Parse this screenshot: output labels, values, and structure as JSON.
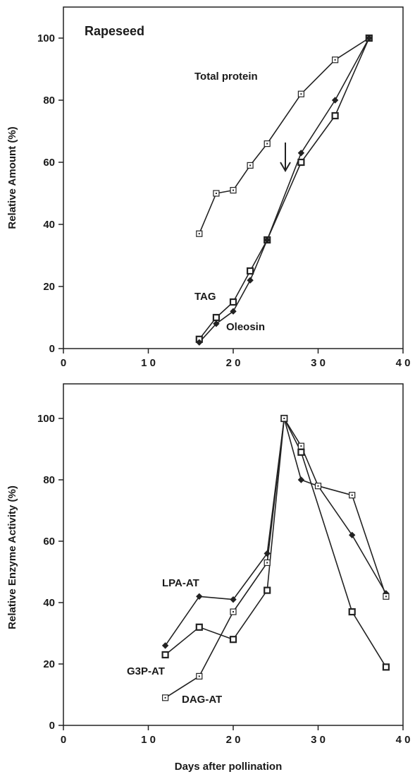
{
  "chart_data": [
    {
      "type": "line",
      "title": "Rapeseed",
      "xlabel": "",
      "ylabel": "Relative  Amount  (%)",
      "xlim": [
        0,
        40
      ],
      "ylim": [
        0,
        110
      ],
      "xticks": [
        0,
        10,
        20,
        30,
        40
      ],
      "xtick_labels": [
        "0",
        "1 0",
        "2 0",
        "3 0",
        "4 0"
      ],
      "yticks": [
        0,
        20,
        40,
        60,
        80,
        100
      ],
      "ytick_labels": [
        "0",
        "20",
        "40",
        "60",
        "80",
        "100"
      ],
      "grid": false,
      "series": [
        {
          "name": "Total protein",
          "marker": "open-square",
          "x": [
            16,
            18,
            20,
            22,
            24,
            28,
            32,
            36
          ],
          "y": [
            37,
            50,
            51,
            59,
            66,
            82,
            93,
            100
          ]
        },
        {
          "name": "TAG",
          "marker": "square",
          "x": [
            16,
            18,
            20,
            22,
            24,
            28,
            32,
            36
          ],
          "y": [
            3,
            10,
            15,
            25,
            35,
            60,
            75,
            100
          ]
        },
        {
          "name": "Oleosin",
          "marker": "diamond",
          "x": [
            16,
            18,
            20,
            22,
            24,
            28,
            32,
            36
          ],
          "y": [
            2,
            8,
            12,
            22,
            35,
            63,
            80,
            100
          ]
        }
      ],
      "annotations": [
        {
          "text": "Total protein",
          "series": "Total protein"
        },
        {
          "text": "TAG",
          "series": "TAG"
        },
        {
          "text": "Oleosin",
          "series": "Oleosin"
        },
        {
          "marker": "arrow-down",
          "x": 26.3,
          "y": 58
        }
      ]
    },
    {
      "type": "line",
      "title": "",
      "xlabel": "Days after pollination",
      "ylabel": "Relative  Enzyme  Activity  (%)",
      "xlim": [
        0,
        40
      ],
      "ylim": [
        0,
        110
      ],
      "xticks": [
        0,
        10,
        20,
        30,
        40
      ],
      "xtick_labels": [
        "0",
        "1 0",
        "2 0",
        "3 0",
        "4 0"
      ],
      "yticks": [
        0,
        20,
        40,
        60,
        80,
        100
      ],
      "ytick_labels": [
        "0",
        "20",
        "40",
        "60",
        "80",
        "100"
      ],
      "grid": false,
      "series": [
        {
          "name": "LPA-AT",
          "marker": "diamond",
          "x": [
            12,
            16,
            20,
            24,
            26,
            28,
            30,
            34,
            38
          ],
          "y": [
            26,
            42,
            41,
            56,
            100,
            80,
            78,
            62,
            43
          ]
        },
        {
          "name": "G3P-AT",
          "marker": "square",
          "x": [
            12,
            16,
            20,
            24,
            26,
            28,
            34,
            38
          ],
          "y": [
            23,
            32,
            28,
            44,
            100,
            89,
            37,
            19
          ]
        },
        {
          "name": "DAG-AT",
          "marker": "open-square",
          "x": [
            12,
            16,
            20,
            24,
            26,
            28,
            30,
            34,
            38
          ],
          "y": [
            9,
            16,
            37,
            53,
            100,
            91,
            78,
            75,
            42
          ]
        }
      ],
      "annotations": [
        {
          "text": "LPA-AT",
          "series": "LPA-AT"
        },
        {
          "text": "G3P-AT",
          "series": "G3P-AT"
        },
        {
          "text": "DAG-AT",
          "series": "DAG-AT"
        }
      ]
    }
  ]
}
